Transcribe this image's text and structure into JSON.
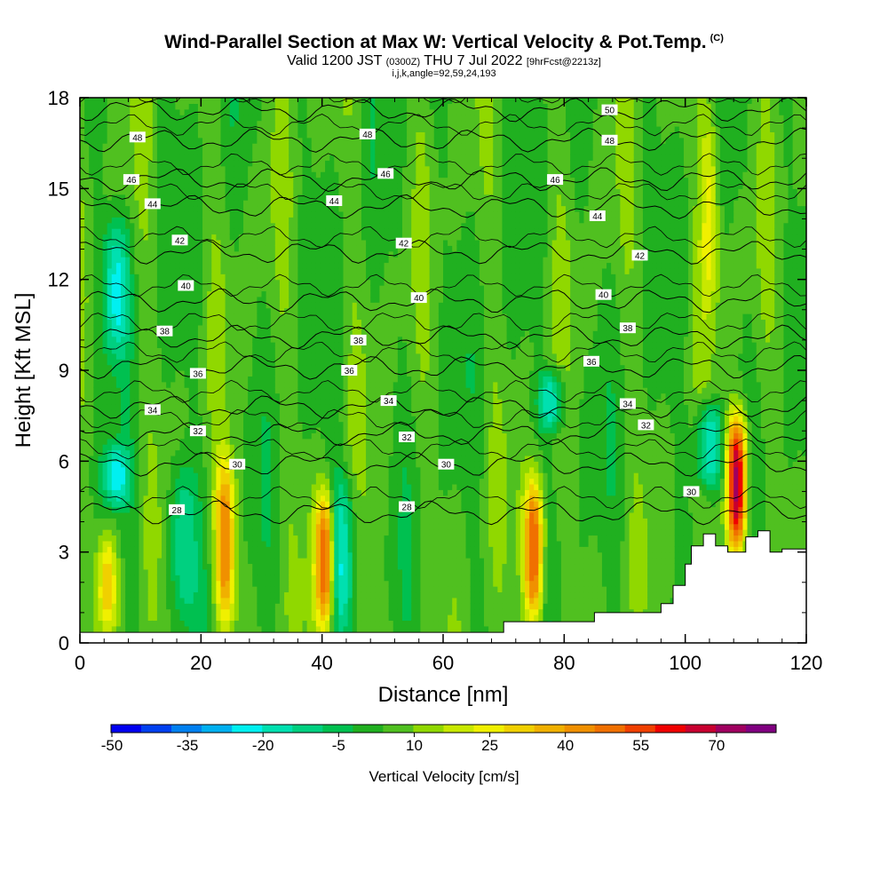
{
  "header": {
    "title": "Wind-Parallel Section at Max W: Vertical Velocity & Pot.Temp.",
    "copyright": "(C)",
    "valid_prefix": "Valid 1200 JST",
    "valid_z": "(0300Z)",
    "valid_date": "THU 7 Jul 2022",
    "forecast": "[9hrFcst@2213z]",
    "indices": "i,j,k,angle=92,59,24,193"
  },
  "chart_data": {
    "type": "heatmap",
    "xlabel": "Distance [nm]",
    "ylabel": "Height [Kft MSL]",
    "xlim": [
      0,
      120
    ],
    "ylim": [
      0,
      18
    ],
    "x_ticks": [
      "0",
      "20",
      "40",
      "60",
      "80",
      "100",
      "120"
    ],
    "y_ticks": [
      "0",
      "3",
      "6",
      "9",
      "12",
      "15",
      "18"
    ],
    "x_tick_values": [
      0,
      20,
      40,
      60,
      80,
      100,
      120
    ],
    "y_tick_values": [
      0,
      3,
      6,
      9,
      12,
      15,
      18
    ],
    "colorbar": {
      "title": "Vertical Velocity [cm/s]",
      "labels": [
        "-50",
        "-35",
        "-20",
        "-5",
        "10",
        "25",
        "40",
        "55",
        "70"
      ],
      "colors": [
        "#0000f0",
        "#0040f0",
        "#0080f0",
        "#00b0f0",
        "#00f0f0",
        "#00e0b0",
        "#00d080",
        "#00c050",
        "#20b020",
        "#50c020",
        "#90d800",
        "#c8e800",
        "#f0f000",
        "#f0d000",
        "#f0b000",
        "#f09000",
        "#f07000",
        "#f04000",
        "#f00000",
        "#c80030",
        "#a00060",
        "#800080"
      ]
    },
    "updraft_maxima": [
      {
        "x": 4.5,
        "z_min": 0.5,
        "z_max": 3.5,
        "w": 30
      },
      {
        "x": 24,
        "z_min": 0.5,
        "z_max": 6,
        "w": 45
      },
      {
        "x": 40.5,
        "z_min": 0.5,
        "z_max": 5,
        "w": 55
      },
      {
        "x": 75,
        "z_min": 0.7,
        "z_max": 5.4,
        "w": 55
      },
      {
        "x": 108.5,
        "z_min": 3,
        "z_max": 7.5,
        "w": 75
      },
      {
        "x": 104,
        "z_min": 11,
        "z_max": 18,
        "w": 25
      }
    ],
    "downdraft_minima": [
      {
        "x": 6,
        "z_min": 9.5,
        "z_max": 14,
        "w": -20
      },
      {
        "x": 6,
        "z_min": 4.5,
        "z_max": 6.5,
        "w": -20
      },
      {
        "x": 17,
        "z_min": 0.7,
        "z_max": 6,
        "w": -15
      },
      {
        "x": 43,
        "z_min": 0.5,
        "z_max": 5.5,
        "w": -20
      },
      {
        "x": 78,
        "z_min": 7,
        "z_max": 9,
        "w": -20
      },
      {
        "x": 104,
        "z_min": 5,
        "z_max": 8,
        "w": -25
      }
    ],
    "potential_temperature_contours": [
      {
        "label": "28",
        "z": 4.3
      },
      {
        "label": "30",
        "z": 5.9
      },
      {
        "label": "32",
        "z": 6.9
      },
      {
        "label": "34",
        "z": 7.8
      },
      {
        "label": "36",
        "z": 9.1
      },
      {
        "label": "38",
        "z": 10.1
      },
      {
        "label": "40",
        "z": 11.3
      },
      {
        "label": "42",
        "z": 12.9
      },
      {
        "label": "44",
        "z": 14.4
      },
      {
        "label": "46",
        "z": 15.3
      },
      {
        "label": "48",
        "z": 16.6
      },
      {
        "label": "50",
        "z": 17.6
      }
    ],
    "contour_labels": [
      {
        "text": "48",
        "x": 9.5,
        "z": 16.7
      },
      {
        "text": "46",
        "x": 8.5,
        "z": 15.3
      },
      {
        "text": "44",
        "x": 12,
        "z": 14.5
      },
      {
        "text": "42",
        "x": 16.5,
        "z": 13.3
      },
      {
        "text": "40",
        "x": 17.5,
        "z": 11.8
      },
      {
        "text": "38",
        "x": 14,
        "z": 10.3
      },
      {
        "text": "36",
        "x": 19.5,
        "z": 8.9
      },
      {
        "text": "34",
        "x": 12,
        "z": 7.7
      },
      {
        "text": "32",
        "x": 19.5,
        "z": 7
      },
      {
        "text": "30",
        "x": 26,
        "z": 5.9
      },
      {
        "text": "28",
        "x": 16,
        "z": 4.4
      },
      {
        "text": "48",
        "x": 47.5,
        "z": 16.8
      },
      {
        "text": "46",
        "x": 50.5,
        "z": 15.5
      },
      {
        "text": "44",
        "x": 42,
        "z": 14.6
      },
      {
        "text": "42",
        "x": 53.5,
        "z": 13.2
      },
      {
        "text": "40",
        "x": 56,
        "z": 11.4
      },
      {
        "text": "38",
        "x": 46,
        "z": 10
      },
      {
        "text": "36",
        "x": 44.5,
        "z": 9
      },
      {
        "text": "34",
        "x": 51,
        "z": 8
      },
      {
        "text": "32",
        "x": 54,
        "z": 6.8
      },
      {
        "text": "30",
        "x": 60.5,
        "z": 5.9
      },
      {
        "text": "28",
        "x": 54,
        "z": 4.5
      },
      {
        "text": "50",
        "x": 87.5,
        "z": 17.6
      },
      {
        "text": "48",
        "x": 87.5,
        "z": 16.6
      },
      {
        "text": "46",
        "x": 78.5,
        "z": 15.3
      },
      {
        "text": "44",
        "x": 85.5,
        "z": 14.1
      },
      {
        "text": "42",
        "x": 92.5,
        "z": 12.8
      },
      {
        "text": "40",
        "x": 86.5,
        "z": 11.5
      },
      {
        "text": "38",
        "x": 90.5,
        "z": 10.4
      },
      {
        "text": "36",
        "x": 84.5,
        "z": 9.3
      },
      {
        "text": "34",
        "x": 90.5,
        "z": 7.9
      },
      {
        "text": "32",
        "x": 93.5,
        "z": 7.2
      },
      {
        "text": "30",
        "x": 101,
        "z": 5
      }
    ],
    "terrain": [
      {
        "x": 0,
        "z": 0.35
      },
      {
        "x": 70,
        "z": 0.35
      },
      {
        "x": 70,
        "z": 0.7
      },
      {
        "x": 85,
        "z": 0.7
      },
      {
        "x": 85,
        "z": 1
      },
      {
        "x": 96,
        "z": 1
      },
      {
        "x": 96,
        "z": 1.3
      },
      {
        "x": 98,
        "z": 1.3
      },
      {
        "x": 98,
        "z": 1.9
      },
      {
        "x": 100,
        "z": 1.9
      },
      {
        "x": 100,
        "z": 2.6
      },
      {
        "x": 101,
        "z": 2.6
      },
      {
        "x": 101,
        "z": 3.2
      },
      {
        "x": 103,
        "z": 3.2
      },
      {
        "x": 103,
        "z": 3.6
      },
      {
        "x": 105,
        "z": 3.6
      },
      {
        "x": 105,
        "z": 3.2
      },
      {
        "x": 107,
        "z": 3.2
      },
      {
        "x": 107,
        "z": 3
      },
      {
        "x": 110,
        "z": 3
      },
      {
        "x": 110,
        "z": 3.5
      },
      {
        "x": 112,
        "z": 3.5
      },
      {
        "x": 112,
        "z": 3.7
      },
      {
        "x": 114,
        "z": 3.7
      },
      {
        "x": 114,
        "z": 3
      },
      {
        "x": 116,
        "z": 3
      },
      {
        "x": 116,
        "z": 3.1
      },
      {
        "x": 120,
        "z": 3.1
      }
    ]
  }
}
